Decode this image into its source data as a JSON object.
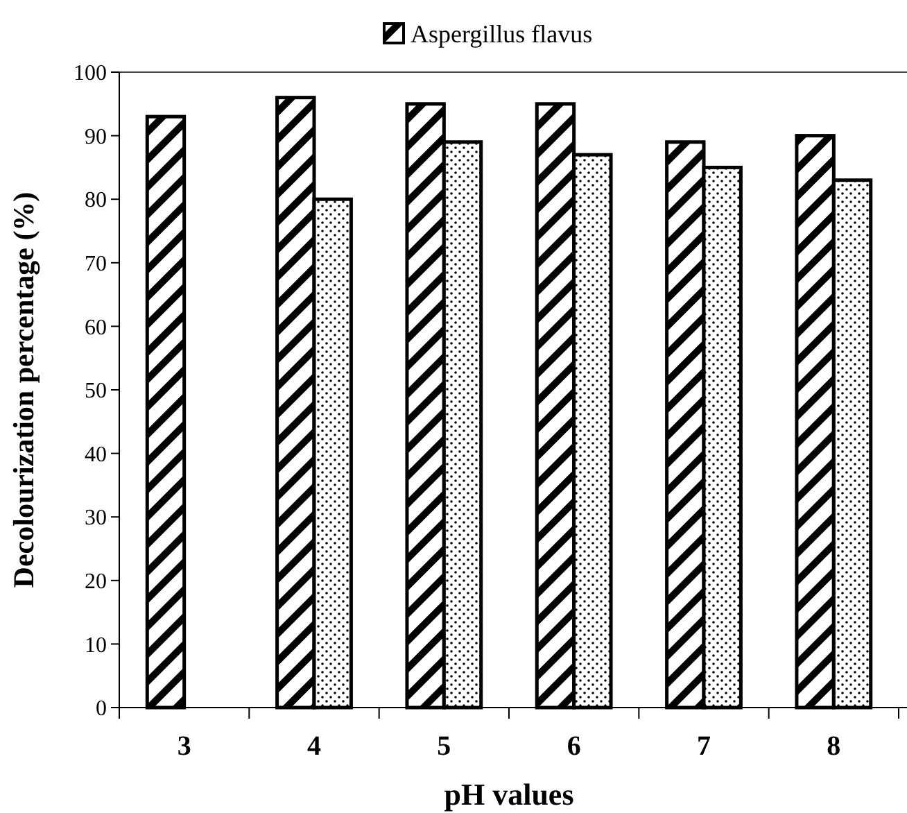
{
  "chart_data": {
    "type": "bar",
    "xlabel": "pH values",
    "ylabel": "Decolourization percentage (%)",
    "categories": [
      "3",
      "4",
      "5",
      "6",
      "7",
      "8"
    ],
    "series": [
      {
        "name": "Aspergillus flavus",
        "color": "#000000",
        "values": [
          93,
          96,
          95,
          95,
          89,
          90
        ]
      },
      {
        "color": "#000000",
        "values": [
          null,
          80,
          89,
          87,
          85,
          83
        ]
      }
    ],
    "ylim": [
      0,
      100
    ],
    "yticks": [
      0,
      10,
      20,
      30,
      40,
      50,
      60,
      70,
      80,
      90,
      100
    ],
    "grid": false,
    "legend": "top"
  }
}
